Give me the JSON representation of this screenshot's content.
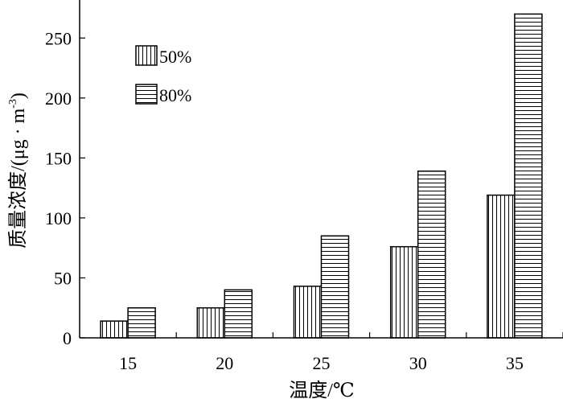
{
  "chart_data": {
    "type": "bar",
    "xlabel": "温度/℃",
    "ylabel": "质量浓度/(μg · m",
    "ylabel_sup": "-3",
    "ylabel_tail": ")",
    "categories": [
      "15",
      "20",
      "25",
      "30",
      "35"
    ],
    "ylim": [
      0,
      275
    ],
    "yticks": [
      0,
      50,
      100,
      150,
      200,
      250
    ],
    "legend_position": "top-left",
    "grid": false,
    "series": [
      {
        "name": "50%",
        "pattern": "vertical-stripes",
        "values": [
          14,
          25,
          43,
          76,
          119
        ]
      },
      {
        "name": "80%",
        "pattern": "horizontal-stripes",
        "values": [
          25,
          40,
          85,
          139,
          270
        ]
      }
    ]
  }
}
